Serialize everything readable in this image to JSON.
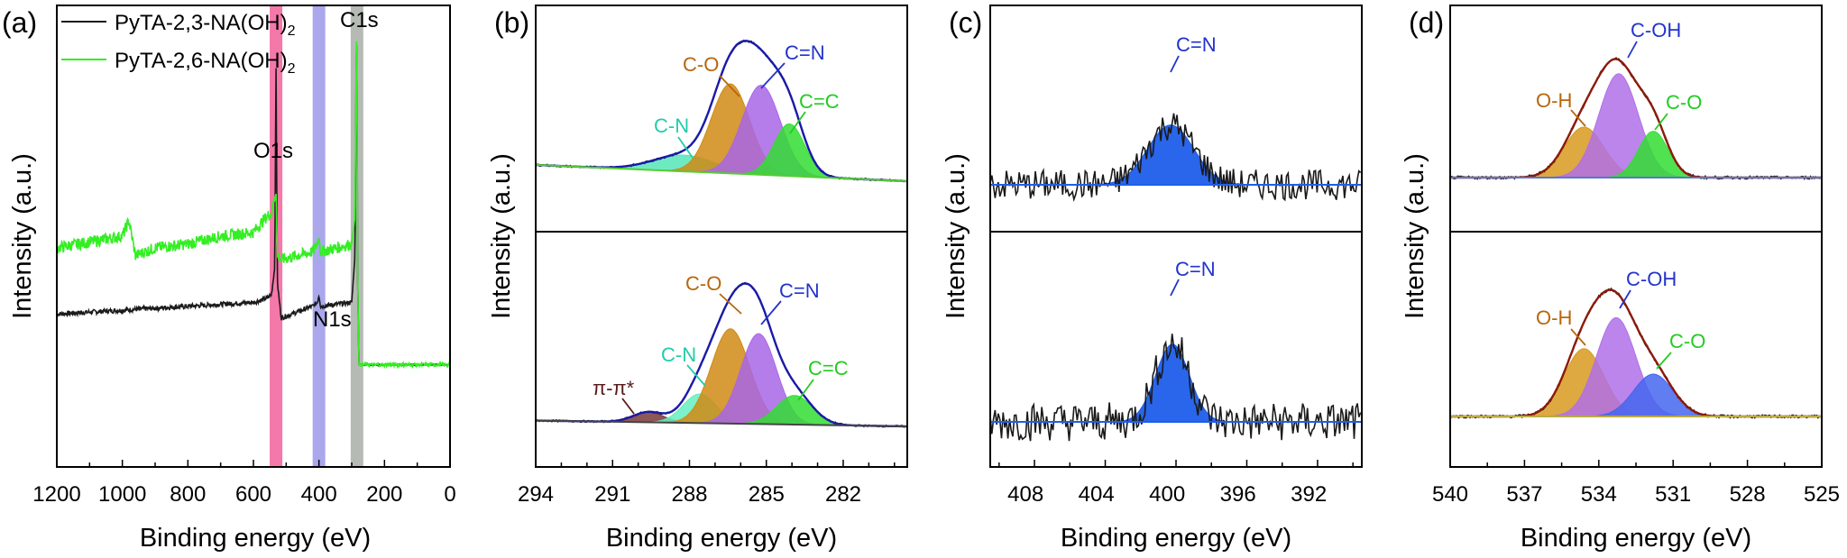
{
  "colors": {
    "black": "#1a1a1a",
    "green_survey": "#33ee22",
    "O1s_band": "#f2609a",
    "N1s_band": "#9b98ea",
    "C1s_band": "#a9aea8",
    "envelope_blue": "#1a1aa8",
    "envelope_brown": "#8b1a0a",
    "baseline_green": "#55cc33",
    "c_o": "#d08a14",
    "c_eq_n": "#a866e6",
    "c_eq_c": "#33dd33",
    "c_n": "#55e6b8",
    "c_n_lower": "#66eec0",
    "pipi": "#7a3a3a",
    "n_fill": "#1e5eea",
    "o_h": "#d89a1e",
    "c_oh": "#b070e8",
    "c_o_d": "#33dd33",
    "c_o_d_blue": "#4466ee",
    "label_blue": "#2233cc",
    "label_brown": "#b8660c",
    "label_cn": "#22ccaa",
    "label_cc": "#22cc22",
    "label_pipi": "#5a1a1a"
  },
  "chart_data": [
    {
      "panel": "(a)",
      "type": "line",
      "xlabel": "Binding energy (eV)",
      "ylabel": "Intensity (a.u.)",
      "xlim": [
        1200,
        0
      ],
      "xticks": [
        "1200",
        "1000",
        "800",
        "600",
        "400",
        "200",
        "0"
      ],
      "legend": [
        "PyTA-2,3-NA(OH)",
        "PyTA-2,6-NA(OH)"
      ],
      "legend_sub": "2",
      "bands": [
        {
          "label": "O1s",
          "center": 531
        },
        {
          "label": "N1s",
          "center": 400
        },
        {
          "label": "C1s",
          "center": 284
        }
      ],
      "series": [
        {
          "name": "PyTA-2,3-NA(OH)2",
          "x": [
            1200,
            1000,
            800,
            600,
            560,
            545,
            535,
            531,
            527,
            515,
            420,
            405,
            400,
            395,
            300,
            290,
            286,
            284,
            282,
            278,
            200,
            100,
            0
          ],
          "y": [
            0.3,
            0.31,
            0.32,
            0.33,
            0.34,
            0.35,
            0.42,
            0.93,
            0.38,
            0.29,
            0.32,
            0.33,
            0.35,
            0.32,
            0.33,
            0.45,
            1.0,
            0.98,
            0.4,
            0.17,
            0.17,
            0.17,
            0.17
          ]
        },
        {
          "name": "PyTA-2,6-NA(OH)2",
          "x": [
            1200,
            1000,
            980,
            960,
            900,
            800,
            700,
            600,
            560,
            545,
            535,
            531,
            527,
            515,
            420,
            405,
            400,
            395,
            300,
            290,
            286,
            284,
            282,
            278,
            200,
            100,
            0
          ],
          "y": [
            0.47,
            0.5,
            0.54,
            0.45,
            0.47,
            0.48,
            0.5,
            0.51,
            0.55,
            0.56,
            0.6,
            0.62,
            0.45,
            0.44,
            0.46,
            0.48,
            0.5,
            0.46,
            0.48,
            0.55,
            1.0,
            1.0,
            0.4,
            0.17,
            0.17,
            0.17,
            0.17
          ]
        }
      ]
    },
    {
      "panel": "(b)",
      "type": "line",
      "xlabel": "Binding energy (eV)",
      "ylabel": "Intensity (a.u.)",
      "xlim": [
        294,
        279.5
      ],
      "xticks": [
        "294",
        "291",
        "288",
        "285",
        "282"
      ],
      "subplots": [
        {
          "position": "top",
          "baseline": {
            "x": [
              294,
              279.5
            ],
            "y": [
              0.1,
              0.0
            ]
          },
          "peaks": [
            {
              "label": "C-N",
              "center": 288.2,
              "sigma": 1.2,
              "height": 0.1,
              "fill_key": "c_n"
            },
            {
              "label": "C-O",
              "center": 286.4,
              "sigma": 0.75,
              "height": 0.55,
              "fill_key": "c_o"
            },
            {
              "label": "C=N",
              "center": 285.2,
              "sigma": 0.75,
              "height": 0.55,
              "fill_key": "c_eq_n"
            },
            {
              "label": "C=C",
              "center": 284.1,
              "sigma": 0.6,
              "height": 0.32,
              "fill_key": "c_eq_c"
            }
          ],
          "labels": [
            {
              "text": "C-O",
              "color_key": "label_brown"
            },
            {
              "text": "C=N",
              "color_key": "label_blue"
            },
            {
              "text": "C=C",
              "color_key": "label_cc"
            },
            {
              "text": "C-N",
              "color_key": "label_cn"
            }
          ]
        },
        {
          "position": "bottom",
          "baseline": {
            "x": [
              294,
              279.5
            ],
            "y": [
              0.04,
              0.0
            ]
          },
          "peaks": [
            {
              "label": "π-π*",
              "center": 289.6,
              "sigma": 0.6,
              "height": 0.07,
              "fill_key": "pipi"
            },
            {
              "label": "C-N",
              "center": 287.6,
              "sigma": 0.65,
              "height": 0.2,
              "fill_key": "c_n_lower"
            },
            {
              "label": "C-O",
              "center": 286.4,
              "sigma": 0.75,
              "height": 0.65,
              "fill_key": "c_o"
            },
            {
              "label": "C=N",
              "center": 285.3,
              "sigma": 0.7,
              "height": 0.62,
              "fill_key": "c_eq_n"
            },
            {
              "label": "C=C",
              "center": 283.9,
              "sigma": 0.7,
              "height": 0.2,
              "fill_key": "c_eq_c"
            }
          ],
          "labels": [
            {
              "text": "C-O",
              "color_key": "label_brown"
            },
            {
              "text": "C=N",
              "color_key": "label_blue"
            },
            {
              "text": "C-N",
              "color_key": "label_cn"
            },
            {
              "text": "C=C",
              "color_key": "label_cc"
            },
            {
              "text": "π-π*",
              "color_key": "label_pipi"
            }
          ]
        }
      ]
    },
    {
      "panel": "(c)",
      "type": "line",
      "xlabel": "Binding energy (eV)",
      "ylabel": "Intensity (a.u.)",
      "xlim": [
        410.5,
        389.5
      ],
      "xticks": [
        "408",
        "404",
        "400",
        "396",
        "392"
      ],
      "subplots": [
        {
          "position": "top",
          "peaks": [
            {
              "label": "C=N",
              "center": 400.3,
              "sigma": 1.3,
              "height": 0.55,
              "fill_key": "n_fill"
            }
          ],
          "labels": [
            {
              "text": "C=N",
              "color_key": "label_blue"
            }
          ]
        },
        {
          "position": "bottom",
          "peaks": [
            {
              "label": "C=N",
              "center": 400.2,
              "sigma": 0.95,
              "height": 0.6,
              "fill_key": "n_fill"
            }
          ],
          "labels": [
            {
              "text": "C=N",
              "color_key": "label_blue"
            }
          ]
        }
      ]
    },
    {
      "panel": "(d)",
      "type": "line",
      "xlabel": "Binding energy (eV)",
      "ylabel": "Intensity (a.u.)",
      "xlim": [
        540,
        525
      ],
      "xticks": [
        "540",
        "537",
        "534",
        "531",
        "528",
        "525"
      ],
      "subplots": [
        {
          "position": "top",
          "peaks": [
            {
              "label": "O-H",
              "center": 534.6,
              "sigma": 0.8,
              "height": 0.36,
              "fill_key": "o_h"
            },
            {
              "label": "C-OH",
              "center": 533.2,
              "sigma": 0.8,
              "height": 0.74,
              "fill_key": "c_oh"
            },
            {
              "label": "C-O",
              "center": 531.8,
              "sigma": 0.6,
              "height": 0.33,
              "fill_key": "c_o_d"
            }
          ],
          "labels": [
            {
              "text": "O-H",
              "color_key": "label_brown"
            },
            {
              "text": "C-OH",
              "color_key": "label_blue"
            },
            {
              "text": "C-O",
              "color_key": "label_cc"
            }
          ]
        },
        {
          "position": "bottom",
          "peaks": [
            {
              "label": "O-H",
              "center": 534.6,
              "sigma": 0.8,
              "height": 0.48,
              "fill_key": "o_h"
            },
            {
              "label": "C-OH",
              "center": 533.3,
              "sigma": 0.8,
              "height": 0.7,
              "fill_key": "c_oh"
            },
            {
              "label": "C-O",
              "center": 531.8,
              "sigma": 0.8,
              "height": 0.3,
              "fill_key": "c_o_d_blue"
            }
          ],
          "labels": [
            {
              "text": "O-H",
              "color_key": "label_brown"
            },
            {
              "text": "C-OH",
              "color_key": "label_blue"
            },
            {
              "text": "C-O",
              "color_key": "label_cc"
            }
          ]
        }
      ]
    }
  ]
}
